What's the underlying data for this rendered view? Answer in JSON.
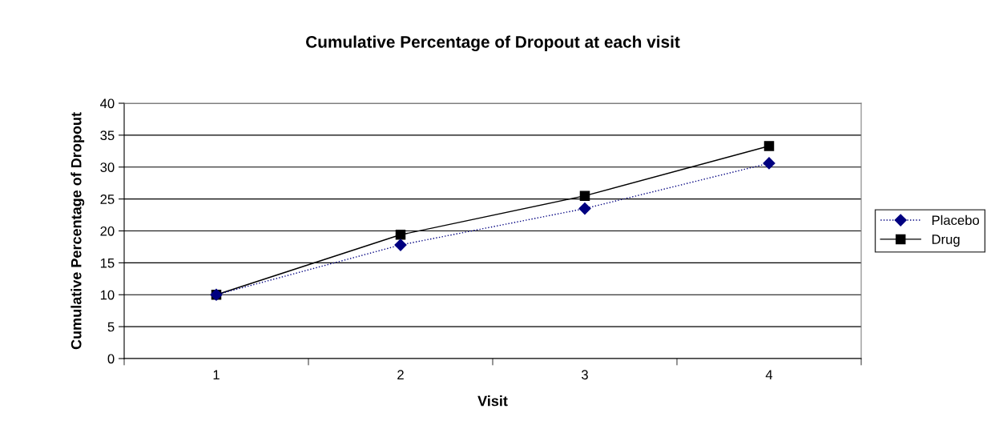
{
  "chart_data": {
    "type": "line",
    "title": "Cumulative Percentage of Dropout at each visit",
    "xlabel": "Visit",
    "ylabel": "Cumulative Percentage of Dropout",
    "categories": [
      "1",
      "2",
      "3",
      "4"
    ],
    "series": [
      {
        "name": "Placebo",
        "color": "#000080",
        "values": [
          10,
          17.8,
          23.5,
          30.6
        ],
        "marker": "diamond",
        "line_style": "dotted"
      },
      {
        "name": "Drug",
        "color": "#000000",
        "values": [
          10,
          19.4,
          25.5,
          33.3
        ],
        "marker": "square",
        "line_style": "solid"
      }
    ],
    "ylim": [
      0,
      40
    ],
    "yticks": [
      0,
      5,
      10,
      15,
      20,
      25,
      30,
      35,
      40
    ],
    "grid": "y",
    "legend": "right"
  }
}
